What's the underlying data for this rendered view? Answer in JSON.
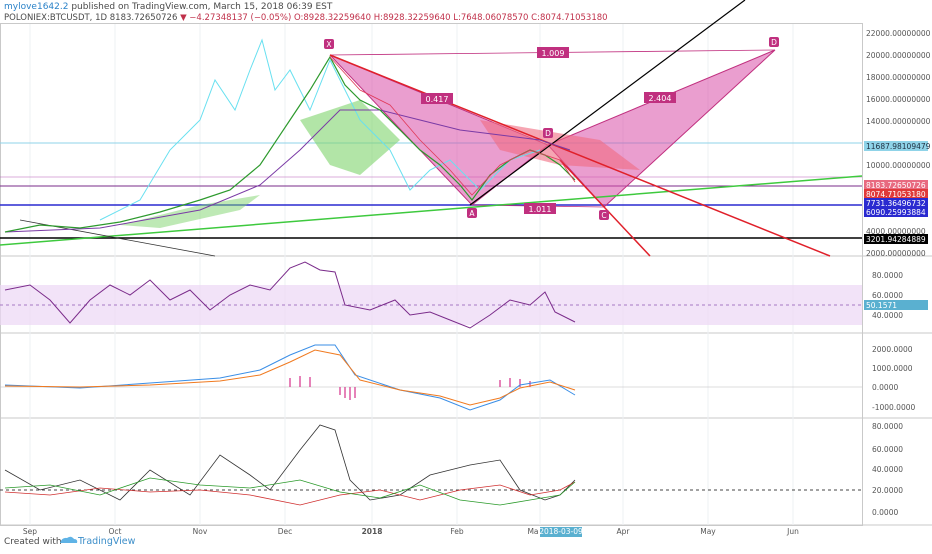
{
  "header": {
    "author": "mylove1642.2",
    "published": "published on TradingView.com, March 15, 2018 06:39 EST"
  },
  "legend": {
    "symbol": "POLONIEX:BTCUSDT, 1D",
    "last": "8183.72650726",
    "change": "▼ −4.27348137 (−0.05%)",
    "open": "O:8928.32259640",
    "high": "H:8928.32259640",
    "low": "L:7648.06078570",
    "close": "C:8074.71053180"
  },
  "price_axis": [
    "22000.00000000",
    "20000.00000000",
    "18000.00000000",
    "16000.00000000",
    "14000.00000000",
    "10000.00000000",
    "4000.00000000",
    "2000.00000000"
  ],
  "price_tags": [
    "11687.98109479",
    "8183.72650726",
    "8074.71053180",
    "7731.36496732",
    "6090.25993884",
    "3201.94284889"
  ],
  "pattern": {
    "points": [
      "X",
      "A",
      "D",
      "C",
      "D"
    ],
    "ratios": [
      "1.009",
      "0.417",
      "2.404",
      "1.011"
    ]
  },
  "rsi_axis": [
    "80.0000",
    "60.0000",
    "40.0000"
  ],
  "rsi_tag": "50.1571",
  "macd_axis": [
    "2000.0000",
    "1000.0000",
    "0.0000",
    "-1000.0000"
  ],
  "dmi_axis": [
    "80.0000",
    "60.0000",
    "40.0000",
    "20.0000",
    "0.0000"
  ],
  "time_axis": [
    "Sep",
    "Oct",
    "Nov",
    "Dec",
    "2018",
    "Feb",
    "Ma",
    "Apr",
    "May",
    "Jun"
  ],
  "time_tag": "2018-03-09",
  "footer": {
    "created": "Created with",
    "brand": "TradingView"
  }
}
